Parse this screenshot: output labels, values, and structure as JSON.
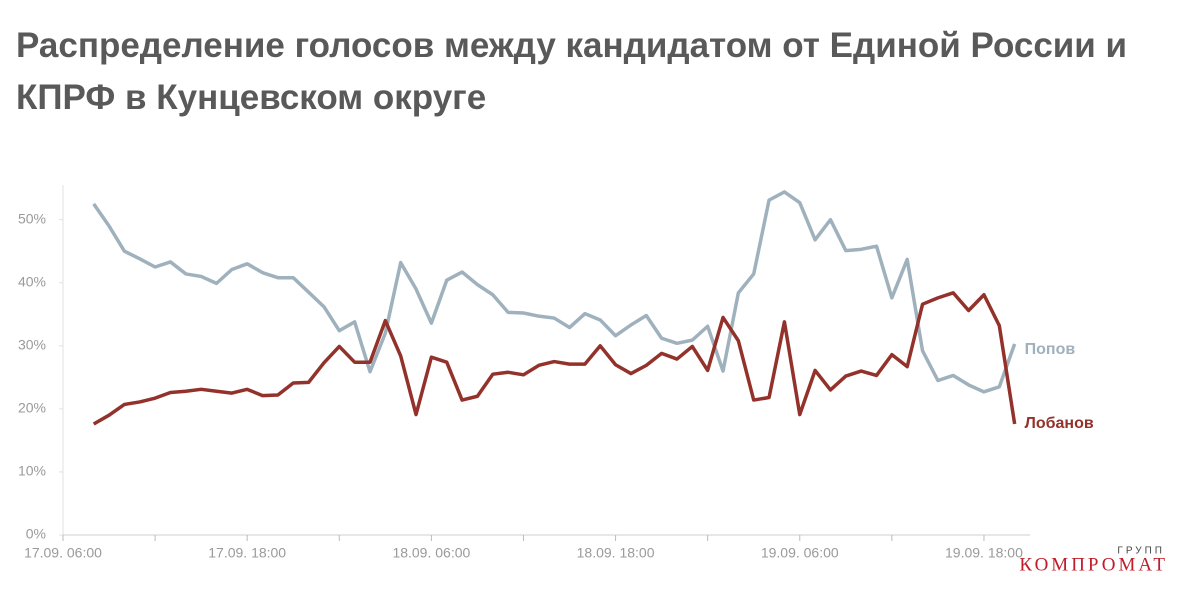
{
  "chart_data": {
    "type": "line",
    "title": "Распределение голосов между кандидатом от Единой России и КПРФ в Кунцевском округе",
    "x": [
      "17.09. 08:00",
      "17.09. 09:00",
      "17.09. 10:00",
      "17.09. 11:00",
      "17.09. 12:00",
      "17.09. 13:00",
      "17.09. 14:00",
      "17.09. 15:00",
      "17.09. 16:00",
      "17.09. 17:00",
      "17.09. 18:00",
      "17.09. 19:00",
      "17.09. 20:00",
      "17.09. 21:00",
      "17.09. 22:00",
      "17.09. 23:00",
      "18.09. 00:00",
      "18.09. 01:00",
      "18.09. 02:00",
      "18.09. 03:00",
      "18.09. 04:00",
      "18.09. 05:00",
      "18.09. 06:00",
      "18.09. 07:00",
      "18.09. 08:00",
      "18.09. 09:00",
      "18.09. 10:00",
      "18.09. 11:00",
      "18.09. 12:00",
      "18.09. 13:00",
      "18.09. 14:00",
      "18.09. 15:00",
      "18.09. 16:00",
      "18.09. 17:00",
      "18.09. 18:00",
      "18.09. 19:00",
      "18.09. 20:00",
      "18.09. 21:00",
      "18.09. 22:00",
      "18.09. 23:00",
      "19.09. 00:00",
      "19.09. 01:00",
      "19.09. 02:00",
      "19.09. 03:00",
      "19.09. 04:00",
      "19.09. 05:00",
      "19.09. 06:00",
      "19.09. 07:00",
      "19.09. 08:00",
      "19.09. 09:00",
      "19.09. 10:00",
      "19.09. 11:00",
      "19.09. 12:00",
      "19.09. 13:00",
      "19.09. 14:00",
      "19.09. 15:00",
      "19.09. 16:00",
      "19.09. 17:00",
      "19.09. 18:00",
      "19.09. 19:00",
      "19.09. 20:00"
    ],
    "series": [
      {
        "name": "Попов",
        "color": "#9fb1bd",
        "values": [
          52.5,
          49,
          45,
          43.8,
          42.5,
          43.3,
          41.4,
          41,
          39.9,
          42.1,
          43,
          41.6,
          40.8,
          40.8,
          38.5,
          36.2,
          32.4,
          33.8,
          25.9,
          32,
          43.2,
          39,
          33.6,
          40.4,
          41.7,
          39.7,
          38.1,
          35.3,
          35.2,
          34.7,
          34.4,
          32.9,
          35.1,
          34.1,
          31.6,
          33.3,
          34.8,
          31.2,
          30.4,
          30.9,
          33.1,
          26,
          38.4,
          41.4,
          53.1,
          54.4,
          52.7,
          46.8,
          50,
          45.1,
          45.3,
          45.8,
          37.6,
          43.7,
          29.2,
          24.5,
          25.3,
          23.8,
          22.7,
          23.5,
          30.3
        ]
      },
      {
        "name": "Лобанов",
        "color": "#93322b",
        "values": [
          17.6,
          19,
          20.7,
          21.1,
          21.7,
          22.6,
          22.8,
          23.1,
          22.8,
          22.5,
          23.1,
          22.1,
          22.2,
          24.1,
          24.2,
          27.3,
          29.9,
          27.4,
          27.4,
          34,
          28.4,
          19.1,
          28.2,
          27.4,
          21.4,
          22,
          25.5,
          25.8,
          25.4,
          26.9,
          27.5,
          27.1,
          27.1,
          30,
          27,
          25.6,
          26.9,
          28.8,
          27.9,
          29.9,
          26.1,
          34.5,
          30.8,
          21.4,
          21.8,
          33.8,
          19.1,
          26.1,
          23,
          25.2,
          26,
          25.3,
          28.6,
          26.7,
          36.6,
          37.6,
          38.4,
          35.6,
          38.1,
          33.2,
          17.6
        ]
      }
    ],
    "xlim": [
      "17.09. 06:00",
      "19.09. 21:00"
    ],
    "xticks": [
      "17.09. 06:00",
      "17.09. 18:00",
      "18.09. 06:00",
      "18.09. 18:00",
      "19.09. 06:00",
      "19.09. 18:00"
    ],
    "ylim": [
      0,
      55.5
    ],
    "yticks": [
      {
        "value": 0,
        "label": "0%"
      },
      {
        "value": 10,
        "label": "10%"
      },
      {
        "value": 20,
        "label": "20%"
      },
      {
        "value": 30,
        "label": "30%"
      },
      {
        "value": 40,
        "label": "40%"
      },
      {
        "value": 50,
        "label": "50%"
      }
    ],
    "grid": false
  },
  "logo": {
    "top": "ГРУПП",
    "main": "КОМПРОМАТ"
  }
}
